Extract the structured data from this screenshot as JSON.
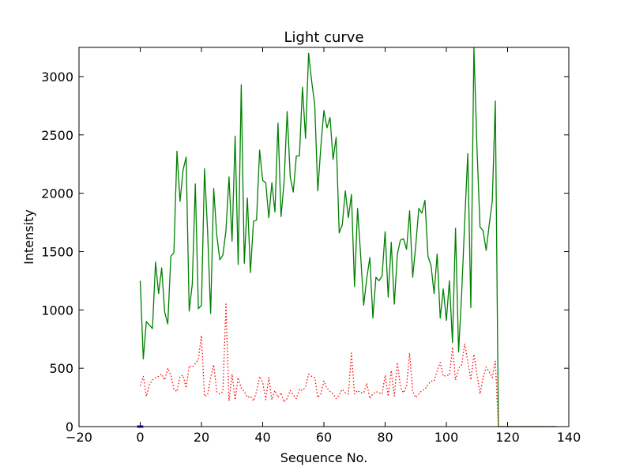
{
  "chart_data": {
    "type": "line",
    "title": "Light curve",
    "xlabel": "Sequence No.",
    "ylabel": "Intensity",
    "xlim": [
      -20,
      140
    ],
    "ylim": [
      0,
      3250
    ],
    "xticks": [
      -20,
      0,
      20,
      40,
      60,
      80,
      100,
      120,
      140
    ],
    "yticks": [
      0,
      500,
      1000,
      1500,
      2000,
      2500,
      3000
    ],
    "grid": false,
    "legend": "none",
    "series": [
      {
        "color": "#008000",
        "style": "solid",
        "x": [
          0,
          1,
          2,
          3,
          4,
          5,
          6,
          7,
          8,
          9,
          10,
          11,
          12,
          13,
          14,
          15,
          16,
          17,
          18,
          19,
          20,
          21,
          22,
          23,
          24,
          25,
          26,
          27,
          28,
          29,
          30,
          31,
          32,
          33,
          34,
          35,
          36,
          37,
          38,
          39,
          40,
          41,
          42,
          43,
          44,
          45,
          46,
          47,
          48,
          49,
          50,
          51,
          52,
          53,
          54,
          55,
          56,
          57,
          58,
          59,
          60,
          61,
          62,
          63,
          64,
          65,
          66,
          67,
          68,
          69,
          70,
          71,
          72,
          73,
          74,
          75,
          76,
          77,
          78,
          79,
          80,
          81,
          82,
          83,
          84,
          85,
          86,
          87,
          88,
          89,
          90,
          91,
          92,
          93,
          94,
          95,
          96,
          97,
          98,
          99,
          100,
          101,
          102,
          103,
          104,
          105,
          106,
          107,
          108,
          109,
          110,
          111,
          112,
          113,
          114,
          115,
          116,
          117,
          118,
          119,
          120,
          121,
          122,
          123,
          124,
          125,
          126,
          127,
          128,
          129,
          130,
          131,
          132,
          133,
          134,
          135,
          136
        ],
        "y": [
          1250,
          580,
          900,
          870,
          840,
          1410,
          1140,
          1360,
          980,
          880,
          1460,
          1490,
          2360,
          1930,
          2200,
          2310,
          990,
          1220,
          2080,
          1010,
          1040,
          2210,
          1680,
          970,
          2040,
          1640,
          1430,
          1470,
          1680,
          2140,
          1590,
          2490,
          1390,
          2930,
          1400,
          1960,
          1320,
          1760,
          1770,
          2370,
          2110,
          2090,
          1790,
          2090,
          1840,
          2600,
          1800,
          2100,
          2700,
          2140,
          2010,
          2320,
          2320,
          2910,
          2470,
          3200,
          2960,
          2760,
          2020,
          2400,
          2710,
          2560,
          2650,
          2290,
          2480,
          1660,
          1730,
          2020,
          1790,
          1990,
          1200,
          1870,
          1470,
          1040,
          1270,
          1450,
          930,
          1280,
          1250,
          1290,
          1670,
          1110,
          1580,
          1050,
          1480,
          1600,
          1610,
          1520,
          1850,
          1280,
          1550,
          1870,
          1830,
          1940,
          1460,
          1380,
          1140,
          1480,
          930,
          1180,
          910,
          1250,
          720,
          1700,
          640,
          1140,
          1760,
          2340,
          1020,
          3250,
          2390,
          1710,
          1680,
          1510,
          1730,
          1930,
          2790,
          0,
          0,
          0,
          0,
          0,
          0,
          0,
          0,
          0,
          0,
          0,
          0,
          0,
          0,
          0,
          0,
          0,
          0,
          0,
          0
        ]
      },
      {
        "color": "#ff0000",
        "style": "dotted",
        "x": [
          0,
          1,
          2,
          3,
          4,
          5,
          6,
          7,
          8,
          9,
          10,
          11,
          12,
          13,
          14,
          15,
          16,
          17,
          18,
          19,
          20,
          21,
          22,
          23,
          24,
          25,
          26,
          27,
          28,
          29,
          30,
          31,
          32,
          33,
          34,
          35,
          36,
          37,
          38,
          39,
          40,
          41,
          42,
          43,
          44,
          45,
          46,
          47,
          48,
          49,
          50,
          51,
          52,
          53,
          54,
          55,
          56,
          57,
          58,
          59,
          60,
          61,
          62,
          63,
          64,
          65,
          66,
          67,
          68,
          69,
          70,
          71,
          72,
          73,
          74,
          75,
          76,
          77,
          78,
          79,
          80,
          81,
          82,
          83,
          84,
          85,
          86,
          87,
          88,
          89,
          90,
          91,
          92,
          93,
          94,
          95,
          96,
          97,
          98,
          99,
          100,
          101,
          102,
          103,
          104,
          105,
          106,
          107,
          108,
          109,
          110,
          111,
          112,
          113,
          114,
          115,
          116,
          117,
          118,
          119,
          120,
          121,
          122,
          123,
          124,
          125,
          126,
          127,
          128,
          129,
          130,
          131,
          132,
          133,
          134,
          135,
          136
        ],
        "y": [
          350,
          430,
          260,
          360,
          400,
          420,
          430,
          450,
          400,
          500,
          440,
          320,
          300,
          430,
          440,
          330,
          520,
          510,
          540,
          580,
          780,
          260,
          270,
          420,
          530,
          300,
          280,
          300,
          1050,
          220,
          450,
          230,
          420,
          330,
          300,
          250,
          260,
          220,
          300,
          430,
          380,
          230,
          420,
          230,
          310,
          250,
          290,
          210,
          240,
          310,
          270,
          240,
          320,
          310,
          340,
          450,
          430,
          420,
          250,
          280,
          390,
          330,
          300,
          280,
          240,
          270,
          320,
          290,
          280,
          630,
          280,
          310,
          290,
          290,
          370,
          240,
          280,
          300,
          290,
          280,
          440,
          260,
          480,
          260,
          550,
          340,
          290,
          350,
          630,
          300,
          250,
          280,
          310,
          320,
          360,
          390,
          390,
          480,
          550,
          430,
          440,
          440,
          680,
          400,
          500,
          530,
          710,
          560,
          400,
          620,
          450,
          280,
          420,
          510,
          470,
          420,
          560,
          0,
          0,
          0,
          0,
          0,
          0,
          0,
          0,
          0,
          0,
          0,
          0,
          0,
          0,
          0,
          0,
          0,
          0,
          0,
          0
        ]
      },
      {
        "color": "#0000ff",
        "style": "solid",
        "x": [
          -1,
          0,
          1
        ],
        "y": [
          0,
          0,
          0
        ]
      }
    ]
  }
}
